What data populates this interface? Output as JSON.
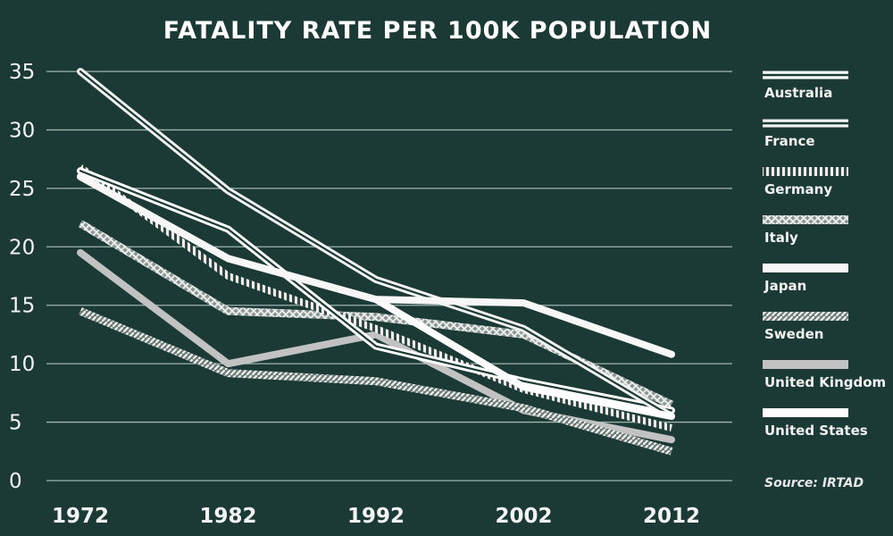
{
  "chart_data": {
    "type": "line",
    "title": "FATALITY RATE PER 100K POPULATION",
    "x": [
      "1972",
      "1982",
      "1992",
      "2002",
      "2012"
    ],
    "y_ticks": [
      "0",
      "5",
      "10",
      "15",
      "20",
      "25",
      "30",
      "35"
    ],
    "ylim": [
      0,
      35
    ],
    "grid": true,
    "legend_position": "right",
    "series": [
      {
        "name": "Australia",
        "values": [
          26.5,
          21.5,
          11.5,
          8.5,
          6.0
        ],
        "style": "double",
        "color": "#ffffff"
      },
      {
        "name": "France",
        "values": [
          35.0,
          24.8,
          17.2,
          13.0,
          5.5
        ],
        "style": "double",
        "color": "#f2f2f2"
      },
      {
        "name": "Germany",
        "values": [
          26.8,
          17.5,
          13.0,
          7.8,
          4.5
        ],
        "style": "dash",
        "color": "#ececec"
      },
      {
        "name": "Italy",
        "values": [
          22.0,
          14.5,
          14.0,
          12.5,
          6.5
        ],
        "style": "cross",
        "color": "#d7d7d7"
      },
      {
        "name": "Japan",
        "values": [
          26.0,
          19.0,
          15.5,
          15.2,
          10.8
        ],
        "style": "solid",
        "color": "#f7f7f7"
      },
      {
        "name": "Sweden",
        "values": [
          14.5,
          9.2,
          8.5,
          6.2,
          2.5
        ],
        "style": "hatch",
        "color": "#dcdcdc"
      },
      {
        "name": "United Kingdom",
        "values": [
          19.5,
          10.0,
          12.5,
          6.0,
          3.5
        ],
        "style": "solid",
        "color": "#c2c2c2"
      },
      {
        "name": "United States",
        "values": [
          26.0,
          19.0,
          15.5,
          8.0,
          5.5
        ],
        "style": "solid",
        "color": "#ffffff"
      }
    ],
    "source": "Source: IRTAD"
  }
}
